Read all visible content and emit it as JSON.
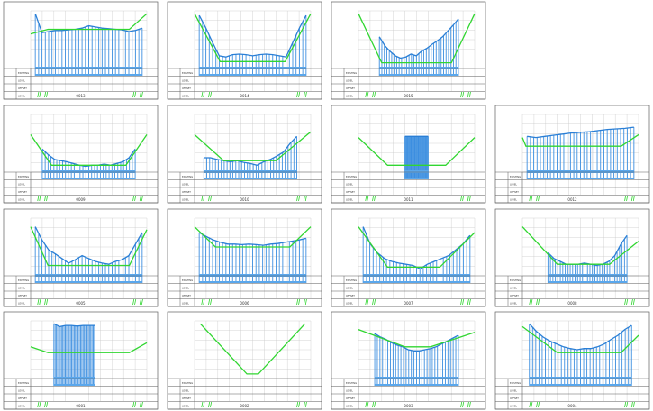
{
  "colors": {
    "bars": "#3d8fe0",
    "ground_profile": "#2a7fd6",
    "design_profile": "#31d631",
    "frame": "#606060"
  },
  "sheet": {
    "row_labels": [
      "EXISTING",
      "LEVEL",
      "OFFSET",
      "LEVEL"
    ],
    "sections": [
      {
        "title": "0013",
        "ground": [
          0.95,
          0.62,
          0.64,
          0.66,
          0.66,
          0.67,
          0.68,
          0.7,
          0.74,
          0.72,
          0.7,
          0.69,
          0.68,
          0.67,
          0.64,
          0.66,
          0.7
        ],
        "design": [
          [
            0.0,
            0.6
          ],
          [
            0.15,
            0.68
          ],
          [
            0.85,
            0.68
          ],
          [
            1.0,
            0.95
          ]
        ],
        "bars_from": 0.04,
        "bars_to": 0.96
      },
      {
        "title": "0014",
        "ground": [
          0.92,
          0.7,
          0.45,
          0.22,
          0.2,
          0.24,
          0.25,
          0.24,
          0.22,
          0.24,
          0.25,
          0.24,
          0.22,
          0.2,
          0.45,
          0.7,
          0.92
        ],
        "design": [
          [
            0.0,
            0.95
          ],
          [
            0.22,
            0.12
          ],
          [
            0.78,
            0.12
          ],
          [
            1.0,
            0.95
          ]
        ],
        "bars_from": 0.04,
        "bars_to": 0.96
      },
      {
        "title": "0015",
        "ground": [
          0.55,
          0.4,
          0.3,
          0.22,
          0.18,
          0.2,
          0.25,
          0.22,
          0.3,
          0.35,
          0.42,
          0.48,
          0.55,
          0.65,
          0.75,
          0.86
        ],
        "design": [
          [
            0.0,
            0.95
          ],
          [
            0.2,
            0.1
          ],
          [
            0.8,
            0.1
          ],
          [
            1.0,
            0.95
          ]
        ],
        "bars_from": 0.18,
        "bars_to": 0.86
      },
      null,
      {
        "title": "0009",
        "ground": [
          0.4,
          0.3,
          0.22,
          0.2,
          0.18,
          0.15,
          0.12,
          0.1,
          0.12,
          0.12,
          0.14,
          0.12,
          0.15,
          0.18,
          0.25,
          0.4
        ],
        "design": [
          [
            0.0,
            0.65
          ],
          [
            0.18,
            0.12
          ],
          [
            0.82,
            0.12
          ],
          [
            1.0,
            0.65
          ]
        ],
        "bars_from": 0.1,
        "bars_to": 0.9
      },
      {
        "title": "0010",
        "ground": [
          0.25,
          0.25,
          0.22,
          0.2,
          0.18,
          0.2,
          0.17,
          0.15,
          0.12,
          0.18,
          0.22,
          0.28,
          0.35,
          0.5,
          0.62
        ],
        "design": [
          [
            0.0,
            0.65
          ],
          [
            0.25,
            0.2
          ],
          [
            0.7,
            0.2
          ],
          [
            1.0,
            0.7
          ]
        ],
        "bars_from": 0.08,
        "bars_to": 0.88
      },
      {
        "title": "0011",
        "ground": [
          0.62,
          0.62,
          0.62,
          0.62,
          0.62,
          0.62,
          0.62,
          0.62
        ],
        "design": [
          [
            0.0,
            0.6
          ],
          [
            0.25,
            0.12
          ],
          [
            0.75,
            0.12
          ],
          [
            1.0,
            0.6
          ]
        ],
        "bars_from": 0.4,
        "bars_to": 0.6
      },
      {
        "title": "0012",
        "ground": [
          0.62,
          0.6,
          0.62,
          0.64,
          0.66,
          0.68,
          0.69,
          0.7,
          0.72,
          0.74,
          0.75,
          0.76,
          0.78
        ],
        "design": [
          [
            0.0,
            0.6
          ],
          [
            0.03,
            0.45
          ],
          [
            0.85,
            0.45
          ],
          [
            1.0,
            0.65
          ]
        ],
        "bars_from": 0.04,
        "bars_to": 0.96
      },
      {
        "title": "0005",
        "ground": [
          0.85,
          0.62,
          0.45,
          0.38,
          0.3,
          0.22,
          0.28,
          0.35,
          0.3,
          0.25,
          0.22,
          0.2,
          0.25,
          0.28,
          0.35,
          0.55,
          0.75
        ],
        "design": [
          [
            0.0,
            0.85
          ],
          [
            0.15,
            0.18
          ],
          [
            0.85,
            0.18
          ],
          [
            1.0,
            0.8
          ]
        ],
        "bars_from": 0.04,
        "bars_to": 0.96
      },
      {
        "title": "0006",
        "ground": [
          0.75,
          0.68,
          0.62,
          0.58,
          0.55,
          0.55,
          0.54,
          0.55,
          0.54,
          0.53,
          0.55,
          0.56,
          0.58,
          0.6,
          0.62,
          0.65
        ],
        "design": [
          [
            0.0,
            0.85
          ],
          [
            0.18,
            0.5
          ],
          [
            0.82,
            0.5
          ],
          [
            1.0,
            0.85
          ]
        ],
        "bars_from": 0.04,
        "bars_to": 0.96
      },
      {
        "title": "0007",
        "ground": [
          0.85,
          0.55,
          0.4,
          0.3,
          0.25,
          0.22,
          0.2,
          0.18,
          0.12,
          0.2,
          0.25,
          0.3,
          0.35,
          0.45,
          0.55,
          0.7
        ],
        "design": [
          [
            0.0,
            0.85
          ],
          [
            0.25,
            0.15
          ],
          [
            0.7,
            0.15
          ],
          [
            1.0,
            0.75
          ]
        ],
        "bars_from": 0.04,
        "bars_to": 0.96
      },
      {
        "title": "0008",
        "ground": [
          0.4,
          0.3,
          0.25,
          0.2,
          0.2,
          0.2,
          0.22,
          0.2,
          0.18,
          0.2,
          0.25,
          0.35,
          0.55,
          0.7
        ],
        "design": [
          [
            0.0,
            0.85
          ],
          [
            0.3,
            0.2
          ],
          [
            0.75,
            0.2
          ],
          [
            1.0,
            0.6
          ]
        ],
        "bars_from": 0.22,
        "bars_to": 0.9
      },
      {
        "title": "0001",
        "ground": [
          0.95,
          0.9,
          0.92,
          0.92,
          0.91,
          0.92,
          0.92,
          0.92
        ],
        "design": [
          [
            0.0,
            0.55
          ],
          [
            0.15,
            0.45
          ],
          [
            0.85,
            0.45
          ],
          [
            1.0,
            0.62
          ]
        ],
        "bars_from": 0.2,
        "bars_to": 0.55
      },
      {
        "title": "0002",
        "ground": [],
        "design": [
          [
            0.05,
            0.95
          ],
          [
            0.45,
            0.08
          ],
          [
            0.55,
            0.08
          ],
          [
            0.95,
            0.95
          ]
        ],
        "bars_from": 0.0,
        "bars_to": 0.0
      },
      {
        "title": "0003",
        "ground": [
          0.78,
          0.72,
          0.68,
          0.62,
          0.58,
          0.55,
          0.5,
          0.48,
          0.48,
          0.5,
          0.52,
          0.55,
          0.6,
          0.65,
          0.7,
          0.75
        ],
        "design": [
          [
            0.0,
            0.85
          ],
          [
            0.4,
            0.55
          ],
          [
            0.62,
            0.55
          ],
          [
            1.0,
            0.8
          ]
        ],
        "bars_from": 0.14,
        "bars_to": 0.86
      },
      {
        "title": "0004",
        "ground": [
          0.95,
          0.82,
          0.72,
          0.65,
          0.6,
          0.55,
          0.52,
          0.5,
          0.52,
          0.52,
          0.55,
          0.6,
          0.68,
          0.75,
          0.85,
          0.92
        ],
        "design": [
          [
            0.0,
            0.9
          ],
          [
            0.3,
            0.45
          ],
          [
            0.85,
            0.45
          ],
          [
            1.0,
            0.75
          ]
        ],
        "bars_from": 0.06,
        "bars_to": 0.94
      }
    ]
  }
}
